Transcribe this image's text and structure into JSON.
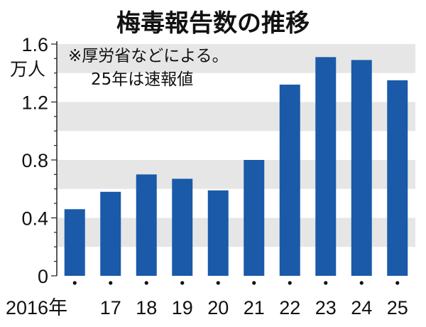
{
  "chart_data": {
    "type": "bar",
    "title": "梅毒報告数の推移",
    "ylabel": "万人",
    "note_lines": [
      "※厚労省などによる。",
      "25年は速報値"
    ],
    "categories": [
      "2016年",
      "17",
      "18",
      "19",
      "20",
      "21",
      "22",
      "23",
      "24",
      "25"
    ],
    "values": [
      0.46,
      0.58,
      0.7,
      0.67,
      0.59,
      0.8,
      1.32,
      1.51,
      1.49,
      1.35
    ],
    "ylim": [
      0,
      1.6
    ],
    "yticks": [
      {
        "value": 0,
        "label": "0"
      },
      {
        "value": 0.4,
        "label": "0.4"
      },
      {
        "value": 0.8,
        "label": "0.8"
      },
      {
        "value": 1.2,
        "label": "1.2"
      },
      {
        "value": 1.6,
        "label": "1.6"
      }
    ],
    "grid": "alternating horizontal gray bands",
    "colors": {
      "bar": "#1a5aa8",
      "band": "#e6e6e6",
      "axis": "#222222"
    }
  }
}
